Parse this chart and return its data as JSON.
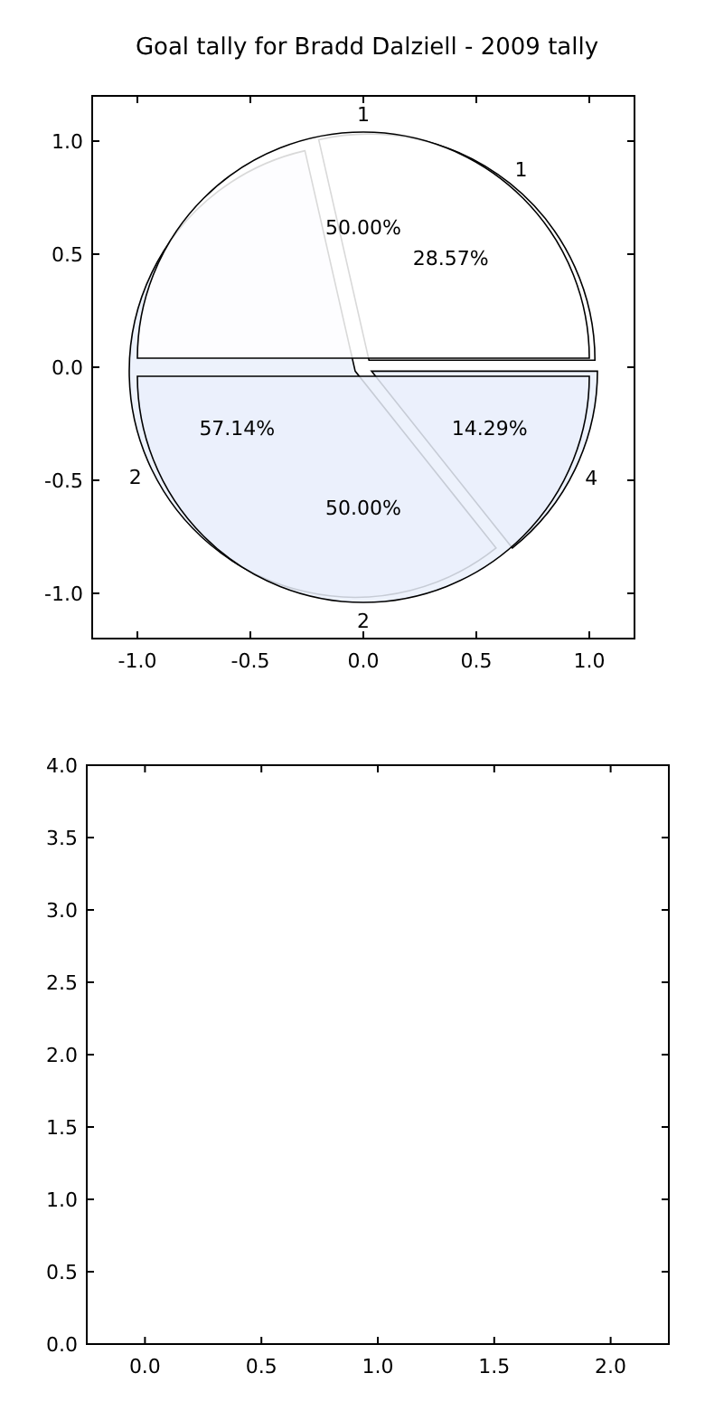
{
  "chart_data": [
    {
      "type": "scatter",
      "xlim": [
        -1.2,
        1.2
      ],
      "ylim": [
        -1.2,
        1.2
      ],
      "xticks": [
        {
          "value": -1,
          "label": "-1.0"
        },
        {
          "value": -0.5,
          "label": "-0.5"
        },
        {
          "value": 0,
          "label": "0.0"
        },
        {
          "value": 0.5,
          "label": "0.5"
        },
        {
          "value": 1,
          "label": "1.0"
        }
      ],
      "yticks": [
        {
          "value": -1,
          "label": "-1.0"
        },
        {
          "value": -0.5,
          "label": "-0.5"
        },
        {
          "value": 0,
          "label": "0.0"
        },
        {
          "value": 0.5,
          "label": "0.5"
        },
        {
          "value": 1,
          "label": "1.0"
        }
      ]
    },
    {
      "type": "pie",
      "title": "Goal tally for Bradd Dalziell - 2009 tally",
      "categories": [
        "1",
        "2"
      ],
      "values": [
        50,
        50
      ],
      "value_labels": [
        "50.00%",
        "50.00%"
      ],
      "colors": [
        "#ffffff",
        "#eaf0fc"
      ]
    },
    {
      "type": "pie",
      "categories": [
        "1",
        "2",
        "4"
      ],
      "values": [
        28.57,
        57.14,
        14.29
      ],
      "value_labels": [
        "28.57%",
        "57.14%",
        "14.29%"
      ],
      "colors": [
        "#ffffff",
        "#eaf0fc",
        "#eaf0fc"
      ]
    },
    {
      "type": "scatter",
      "xlim": [
        -0.25,
        2.25
      ],
      "ylim": [
        0,
        4
      ],
      "xticks": [
        {
          "value": 0,
          "label": "0.0"
        },
        {
          "value": 0.5,
          "label": "0.5"
        },
        {
          "value": 1,
          "label": "1.0"
        },
        {
          "value": 1.5,
          "label": "1.5"
        },
        {
          "value": 2,
          "label": "2.0"
        }
      ],
      "yticks": [
        {
          "value": 0,
          "label": "0.0"
        },
        {
          "value": 0.5,
          "label": "0.5"
        },
        {
          "value": 1,
          "label": "1.0"
        },
        {
          "value": 1.5,
          "label": "1.5"
        },
        {
          "value": 2,
          "label": "2.0"
        },
        {
          "value": 2.5,
          "label": "2.5"
        },
        {
          "value": 3,
          "label": "3.0"
        },
        {
          "value": 3.5,
          "label": "3.5"
        },
        {
          "value": 4,
          "label": "4.0"
        }
      ]
    }
  ]
}
